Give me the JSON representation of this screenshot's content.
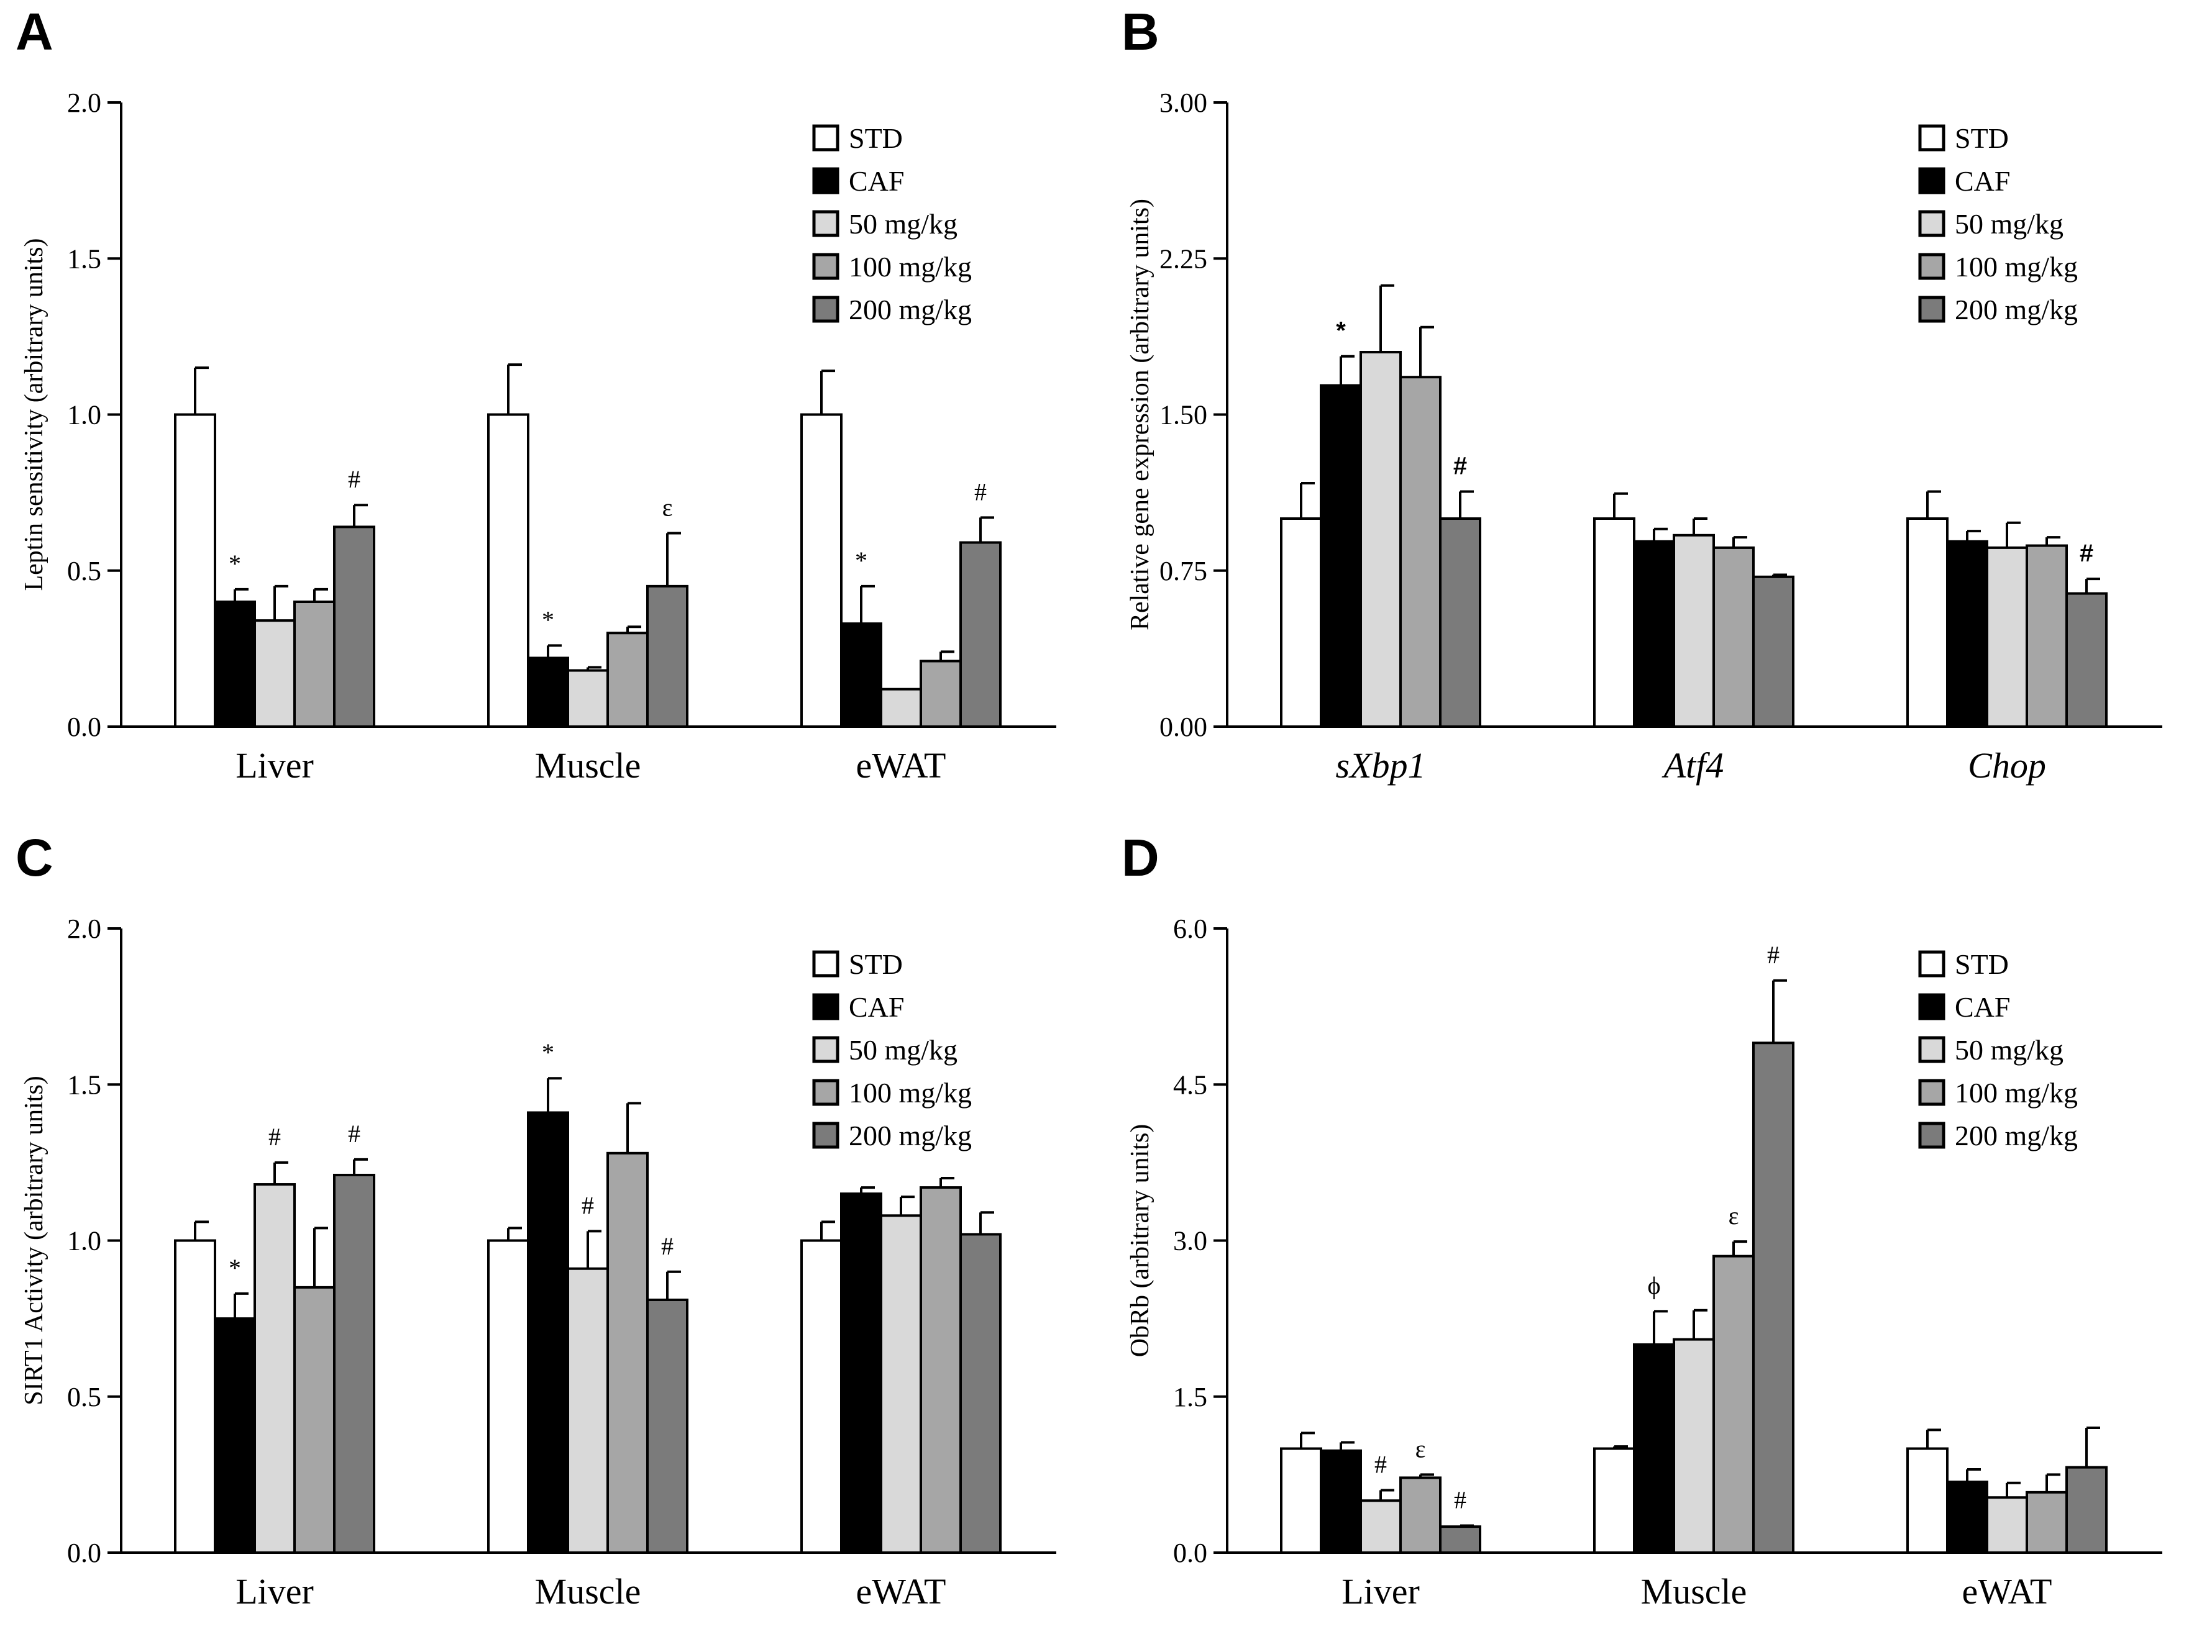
{
  "legend_labels": [
    "STD",
    "CAF",
    "50 mg/kg",
    "100 mg/kg",
    "200 mg/kg"
  ],
  "legend_colors": [
    "#ffffff",
    "#000000",
    "#d9d9d9",
    "#a6a6a6",
    "#7b7b7b"
  ],
  "chart_data": [
    {
      "panel": "A",
      "type": "bar",
      "ylabel": "Leptin sensitivity (arbitrary units)",
      "ylim": [
        0,
        2.0
      ],
      "yticks": [
        "0.0",
        "0.5",
        "1.0",
        "1.5",
        "2.0"
      ],
      "italic_categories": false,
      "categories": [
        "Liver",
        "Muscle",
        "eWAT"
      ],
      "series": [
        {
          "name": "STD",
          "values": [
            1.0,
            1.0,
            1.0
          ],
          "errors": [
            0.15,
            0.16,
            0.14
          ],
          "annotations": [
            "",
            "",
            ""
          ]
        },
        {
          "name": "CAF",
          "values": [
            0.4,
            0.22,
            0.33
          ],
          "errors": [
            0.04,
            0.04,
            0.12
          ],
          "annotations": [
            "*",
            "*",
            "*"
          ]
        },
        {
          "name": "50 mg/kg",
          "values": [
            0.34,
            0.18,
            0.12
          ],
          "errors": [
            0.11,
            0.01,
            0.0
          ],
          "annotations": [
            "",
            "",
            ""
          ]
        },
        {
          "name": "100 mg/kg",
          "values": [
            0.4,
            0.3,
            0.21
          ],
          "errors": [
            0.04,
            0.02,
            0.03
          ],
          "annotations": [
            "",
            "",
            ""
          ]
        },
        {
          "name": "200 mg/kg",
          "values": [
            0.64,
            0.45,
            0.59
          ],
          "errors": [
            0.07,
            0.17,
            0.08
          ],
          "annotations": [
            "#",
            "ε",
            "#"
          ]
        }
      ]
    },
    {
      "panel": "B",
      "type": "bar",
      "ylabel": "Relative gene expression  (arbitrary units)",
      "ylim": [
        0,
        3.0
      ],
      "yticks": [
        "0.00",
        "0.75",
        "1.50",
        "2.25",
        "3.00"
      ],
      "italic_categories": true,
      "categories": [
        "sXbp1",
        "Atf4",
        "Chop"
      ],
      "series": [
        {
          "name": "STD",
          "values": [
            1.0,
            1.0,
            1.0
          ],
          "errors": [
            0.17,
            0.12,
            0.13
          ],
          "annotations": [
            "",
            "",
            ""
          ]
        },
        {
          "name": "CAF",
          "values": [
            1.64,
            0.89,
            0.89
          ],
          "errors": [
            0.14,
            0.06,
            0.05
          ],
          "annotations": [
            "*",
            "",
            ""
          ]
        },
        {
          "name": "50 mg/kg",
          "values": [
            1.8,
            0.92,
            0.86
          ],
          "errors": [
            0.32,
            0.08,
            0.12
          ],
          "annotations": [
            "",
            "",
            ""
          ]
        },
        {
          "name": "100 mg/kg",
          "values": [
            1.68,
            0.86,
            0.87
          ],
          "errors": [
            0.24,
            0.05,
            0.04
          ],
          "annotations": [
            "",
            "",
            ""
          ]
        },
        {
          "name": "200 mg/kg",
          "values": [
            1.0,
            0.72,
            0.64
          ],
          "errors": [
            0.13,
            0.01,
            0.07
          ],
          "annotations": [
            "#",
            "",
            "#"
          ]
        }
      ]
    },
    {
      "panel": "C",
      "type": "bar",
      "ylabel": "SIRT1 Activity (arbitrary units)",
      "ylim": [
        0,
        2.0
      ],
      "yticks": [
        "0.0",
        "0.5",
        "1.0",
        "1.5",
        "2.0"
      ],
      "italic_categories": false,
      "categories": [
        "Liver",
        "Muscle",
        "eWAT"
      ],
      "series": [
        {
          "name": "STD",
          "values": [
            1.0,
            1.0,
            1.0
          ],
          "errors": [
            0.06,
            0.04,
            0.06
          ],
          "annotations": [
            "",
            "",
            ""
          ]
        },
        {
          "name": "CAF",
          "values": [
            0.75,
            1.41,
            1.15
          ],
          "errors": [
            0.08,
            0.11,
            0.02
          ],
          "annotations": [
            "*",
            "*",
            ""
          ]
        },
        {
          "name": "50 mg/kg",
          "values": [
            1.18,
            0.91,
            1.08
          ],
          "errors": [
            0.07,
            0.12,
            0.06
          ],
          "annotations": [
            "#",
            "#",
            ""
          ]
        },
        {
          "name": "100 mg/kg",
          "values": [
            0.85,
            1.28,
            1.17
          ],
          "errors": [
            0.19,
            0.16,
            0.03
          ],
          "annotations": [
            "",
            "",
            ""
          ]
        },
        {
          "name": "200 mg/kg",
          "values": [
            1.21,
            0.81,
            1.02
          ],
          "errors": [
            0.05,
            0.09,
            0.07
          ],
          "annotations": [
            "#",
            "#",
            ""
          ]
        }
      ]
    },
    {
      "panel": "D",
      "type": "bar",
      "ylabel": "ObRb (arbitrary units)",
      "ylim": [
        0,
        6.0
      ],
      "yticks": [
        "0.0",
        "1.5",
        "3.0",
        "4.5",
        "6.0"
      ],
      "italic_categories": false,
      "categories": [
        "Liver",
        "Muscle",
        "eWAT"
      ],
      "series": [
        {
          "name": "STD",
          "values": [
            1.0,
            1.0,
            1.0
          ],
          "errors": [
            0.15,
            0.02,
            0.18
          ],
          "annotations": [
            "",
            "",
            ""
          ]
        },
        {
          "name": "CAF",
          "values": [
            0.98,
            2.0,
            0.68
          ],
          "errors": [
            0.08,
            0.32,
            0.12
          ],
          "annotations": [
            "",
            "ϕ",
            ""
          ]
        },
        {
          "name": "50 mg/kg",
          "values": [
            0.5,
            2.05,
            0.53
          ],
          "errors": [
            0.1,
            0.28,
            0.14
          ],
          "annotations": [
            "#",
            "",
            ""
          ]
        },
        {
          "name": "100 mg/kg",
          "values": [
            0.72,
            2.85,
            0.58
          ],
          "errors": [
            0.03,
            0.14,
            0.17
          ],
          "annotations": [
            "ε",
            "ε",
            ""
          ]
        },
        {
          "name": "200 mg/kg",
          "values": [
            0.25,
            4.9,
            0.82
          ],
          "errors": [
            0.01,
            0.6,
            0.38
          ],
          "annotations": [
            "#",
            "#",
            ""
          ]
        }
      ]
    }
  ]
}
